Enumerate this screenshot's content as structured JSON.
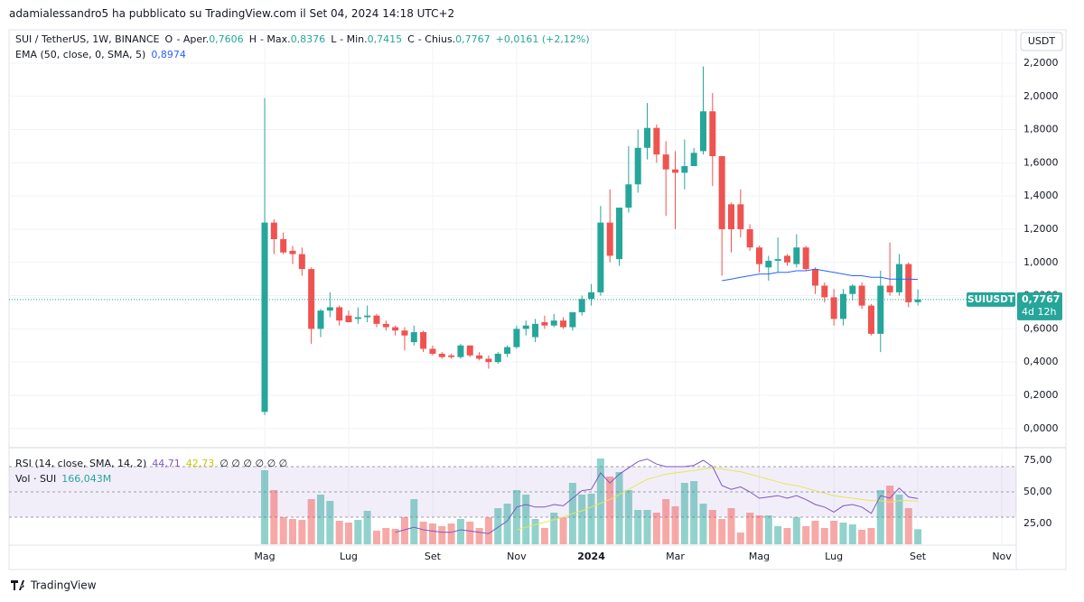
{
  "header": {
    "text": "adamialessandro5 ha pubblicato su TradingView.com il Set 04, 2024 14:18 UTC+2"
  },
  "footer": {
    "brand": "TradingView"
  },
  "chart_data": {
    "type": "candlestick",
    "legend": {
      "symbol": "SUI / TetherUS, 1W, BINANCE",
      "items": [
        {
          "key": "O",
          "label": "- Aper.",
          "value": "0,7606"
        },
        {
          "key": "H",
          "label": "- Max.",
          "value": "0,8376"
        },
        {
          "key": "L",
          "label": "- Min.",
          "value": "0,7415"
        },
        {
          "key": "C",
          "label": "- Chius.",
          "value": "0,7767"
        }
      ],
      "change": "+0,0161 (+2,12%)"
    },
    "currency": "USDT",
    "price_tag": {
      "symbol": "SUIUSDT",
      "price": "0,7767",
      "countdown": "4d 12h"
    },
    "up_color": "#26a69a",
    "down_color": "#ef5350",
    "categories": [
      "Mag",
      null,
      null,
      null,
      null,
      null,
      null,
      null,
      null,
      "Lug",
      null,
      null,
      null,
      null,
      null,
      null,
      null,
      null,
      "Set",
      null,
      null,
      null,
      null,
      null,
      null,
      null,
      null,
      "Nov",
      null,
      null,
      null,
      null,
      null,
      null,
      null,
      "2024",
      null,
      null,
      null,
      null,
      null,
      null,
      null,
      null,
      "Mar",
      null,
      null,
      null,
      null,
      null,
      null,
      null,
      null,
      "Mag",
      null,
      null,
      null,
      null,
      null,
      null,
      null,
      "Lug",
      null,
      null,
      null,
      null,
      null,
      null,
      null,
      null,
      "Set",
      null,
      null,
      null,
      null,
      null,
      null,
      null,
      null,
      "Nov"
    ],
    "open": [
      0.1,
      1.24,
      1.14,
      1.07,
      1.05,
      0.96,
      0.6,
      0.71,
      0.73,
      0.68,
      0.66,
      0.67,
      0.68,
      0.63,
      0.61,
      0.59,
      0.52,
      0.58,
      0.48,
      0.45,
      0.44,
      0.43,
      0.5,
      0.44,
      0.42,
      0.4,
      0.45,
      0.49,
      0.6,
      0.55,
      0.64,
      0.62,
      0.65,
      0.61,
      0.7,
      0.78,
      0.82,
      1.24,
      1.02,
      1.33,
      1.47,
      1.69,
      1.81,
      1.65,
      1.56,
      1.54,
      1.58,
      1.67,
      1.91,
      1.64,
      1.35,
      1.35,
      1.2,
      1.09,
      0.97,
      1.01,
      1.04,
      0.99,
      1.09,
      0.96,
      0.86,
      0.79,
      0.66,
      0.81,
      0.86,
      0.74,
      0.57,
      0.86,
      0.82,
      0.99,
      0.7606,
      null,
      null,
      null,
      null,
      null,
      null,
      null,
      null,
      null
    ],
    "high": [
      1.99,
      1.26,
      1.18,
      1.1,
      1.09,
      0.97,
      0.72,
      0.82,
      0.74,
      0.71,
      0.73,
      0.74,
      0.69,
      0.65,
      0.62,
      0.61,
      0.62,
      0.59,
      0.5,
      0.46,
      0.45,
      0.51,
      0.5,
      0.46,
      0.44,
      0.46,
      0.5,
      0.62,
      0.65,
      0.66,
      0.68,
      0.69,
      0.67,
      0.7,
      0.8,
      0.87,
      1.34,
      1.44,
      1.33,
      1.7,
      1.8,
      1.96,
      1.83,
      1.73,
      1.67,
      1.74,
      1.69,
      2.18,
      2.02,
      1.64,
      1.36,
      1.44,
      1.23,
      1.1,
      1.04,
      1.15,
      1.05,
      1.17,
      1.1,
      0.97,
      0.88,
      0.84,
      0.84,
      0.87,
      0.88,
      0.75,
      0.95,
      1.12,
      1.05,
      1.0,
      0.8376,
      null,
      null,
      null,
      null,
      null,
      null,
      null,
      null,
      null
    ],
    "low": [
      0.08,
      1.05,
      1.05,
      0.99,
      0.92,
      0.51,
      0.55,
      0.67,
      0.62,
      0.64,
      0.63,
      0.64,
      0.61,
      0.59,
      0.56,
      0.47,
      0.5,
      0.46,
      0.44,
      0.42,
      0.42,
      0.42,
      0.43,
      0.41,
      0.36,
      0.39,
      0.43,
      0.48,
      0.56,
      0.52,
      0.6,
      0.61,
      0.6,
      0.59,
      0.68,
      0.74,
      0.8,
      1.0,
      0.98,
      1.3,
      1.42,
      1.62,
      1.6,
      1.28,
      1.2,
      1.44,
      1.58,
      1.65,
      1.46,
      0.92,
      1.06,
      1.15,
      1.07,
      0.94,
      0.89,
      0.94,
      0.98,
      0.97,
      0.95,
      0.81,
      0.76,
      0.62,
      0.62,
      0.77,
      0.72,
      0.56,
      0.46,
      0.8,
      0.8,
      0.73,
      0.7415,
      null,
      null,
      null,
      null,
      null,
      null,
      null,
      null,
      null
    ],
    "close": [
      1.24,
      1.14,
      1.06,
      1.05,
      0.96,
      0.6,
      0.71,
      0.73,
      0.65,
      0.64,
      0.67,
      0.68,
      0.63,
      0.61,
      0.59,
      0.56,
      0.58,
      0.48,
      0.45,
      0.43,
      0.43,
      0.5,
      0.44,
      0.42,
      0.4,
      0.45,
      0.49,
      0.6,
      0.62,
      0.63,
      0.62,
      0.65,
      0.61,
      0.7,
      0.78,
      0.82,
      1.24,
      1.04,
      1.33,
      1.47,
      1.69,
      1.81,
      1.65,
      1.56,
      1.54,
      1.58,
      1.66,
      1.91,
      1.64,
      1.2,
      1.2,
      1.2,
      1.09,
      0.99,
      1.01,
      1.02,
      1.0,
      1.09,
      0.96,
      0.86,
      0.79,
      0.66,
      0.81,
      0.86,
      0.74,
      0.57,
      0.86,
      0.82,
      0.99,
      0.76,
      0.7767,
      null,
      null,
      null,
      null,
      null,
      null,
      null,
      null,
      null
    ],
    "ema": {
      "name": "EMA (50, close, 0, SMA, 5)",
      "value_label": "0,8974",
      "color": "#2962ff",
      "values": [
        null,
        null,
        null,
        null,
        null,
        null,
        null,
        null,
        null,
        null,
        null,
        null,
        null,
        null,
        null,
        null,
        null,
        null,
        null,
        null,
        null,
        null,
        null,
        null,
        null,
        null,
        null,
        null,
        null,
        null,
        null,
        null,
        null,
        null,
        null,
        null,
        null,
        null,
        null,
        null,
        null,
        null,
        null,
        null,
        null,
        null,
        null,
        null,
        null,
        0.89,
        0.9,
        0.91,
        0.92,
        0.93,
        0.93,
        0.94,
        0.94,
        0.95,
        0.95,
        0.96,
        0.95,
        0.94,
        0.93,
        0.92,
        0.92,
        0.91,
        0.91,
        0.9,
        0.9,
        0.9,
        0.8974,
        null,
        null,
        null,
        null,
        null,
        null,
        null,
        null,
        null
      ]
    },
    "ylim": [
      -0.11,
      2.39
    ],
    "yticks": [
      {
        "value": 0,
        "label": "0,0000"
      },
      {
        "value": 0.2,
        "label": "0,2000"
      },
      {
        "value": 0.4,
        "label": "0,4000"
      },
      {
        "value": 0.6,
        "label": "0,6000"
      },
      {
        "value": 0.8,
        "label": "0,8000"
      },
      {
        "value": 1.0,
        "label": "1,0000"
      },
      {
        "value": 1.2,
        "label": "1,2000"
      },
      {
        "value": 1.4,
        "label": "1,4000"
      },
      {
        "value": 1.6,
        "label": "1,6000"
      },
      {
        "value": 1.8,
        "label": "1,8000"
      },
      {
        "value": 2.0,
        "label": "2,0000"
      },
      {
        "value": 2.2,
        "label": "2,2000"
      }
    ],
    "grid": true,
    "rsi": {
      "name": "RSI (14, close, SMA, 14, 2)",
      "value_label": "44,71",
      "ma_label": "42,73",
      "empty_label": "∅ ∅ ∅ ∅ ∅ ∅",
      "color": "#7e57c2",
      "ma_color": "#e6e65c",
      "values": [
        null,
        null,
        null,
        null,
        null,
        null,
        null,
        null,
        null,
        null,
        null,
        null,
        null,
        null,
        18,
        20,
        22,
        20,
        19,
        18,
        18,
        20,
        19,
        18,
        17,
        22,
        27,
        38,
        40,
        38,
        38,
        40,
        39,
        45,
        51,
        52,
        65,
        57,
        64,
        69,
        74,
        76,
        72,
        70,
        70,
        70,
        71,
        75,
        70,
        55,
        52,
        54,
        50,
        45,
        46,
        47,
        45,
        47,
        44,
        40,
        38,
        34,
        39,
        40,
        38,
        33,
        47,
        45,
        53,
        46,
        44.71,
        null,
        null,
        null,
        null,
        null,
        null,
        null,
        null,
        null
      ],
      "ma": [
        null,
        null,
        null,
        null,
        null,
        null,
        null,
        null,
        null,
        null,
        null,
        null,
        null,
        null,
        null,
        null,
        null,
        null,
        null,
        null,
        null,
        null,
        null,
        null,
        null,
        null,
        null,
        20,
        22,
        24,
        26,
        28,
        30,
        33,
        35,
        38,
        41,
        44,
        48,
        52,
        56,
        60,
        62,
        64,
        65,
        66,
        67,
        68,
        69,
        68,
        67,
        66,
        64,
        62,
        60,
        58,
        56,
        55,
        53,
        51,
        49,
        47,
        46,
        45,
        44,
        43,
        43,
        42,
        43,
        43,
        42.73,
        null,
        null,
        null,
        null,
        null,
        null,
        null,
        null,
        null
      ],
      "levels": [
        30,
        50,
        70
      ],
      "ylim": [
        8.6,
        80
      ],
      "yticks": [
        {
          "value": 25,
          "label": "25,00"
        },
        {
          "value": 50,
          "label": "50,00"
        },
        {
          "value": 75,
          "label": "75,00"
        }
      ]
    },
    "volume": {
      "name": "Vol · SUI",
      "value_label": "166,043M",
      "values": [
        820,
        600,
        300,
        280,
        270,
        500,
        550,
        480,
        260,
        240,
        270,
        370,
        150,
        180,
        170,
        300,
        500,
        250,
        230,
        200,
        230,
        280,
        250,
        180,
        300,
        400,
        450,
        600,
        550,
        280,
        180,
        350,
        300,
        680,
        550,
        560,
        950,
        750,
        800,
        600,
        380,
        380,
        350,
        500,
        420,
        680,
        700,
        450,
        380,
        280,
        400,
        130,
        350,
        320,
        320,
        200,
        180,
        300,
        200,
        260,
        180,
        260,
        240,
        220,
        160,
        180,
        600,
        650,
        550,
        400,
        166.043,
        null,
        null,
        null,
        null,
        null,
        null,
        null,
        null,
        null
      ],
      "ylim": [
        0,
        1000
      ]
    }
  }
}
